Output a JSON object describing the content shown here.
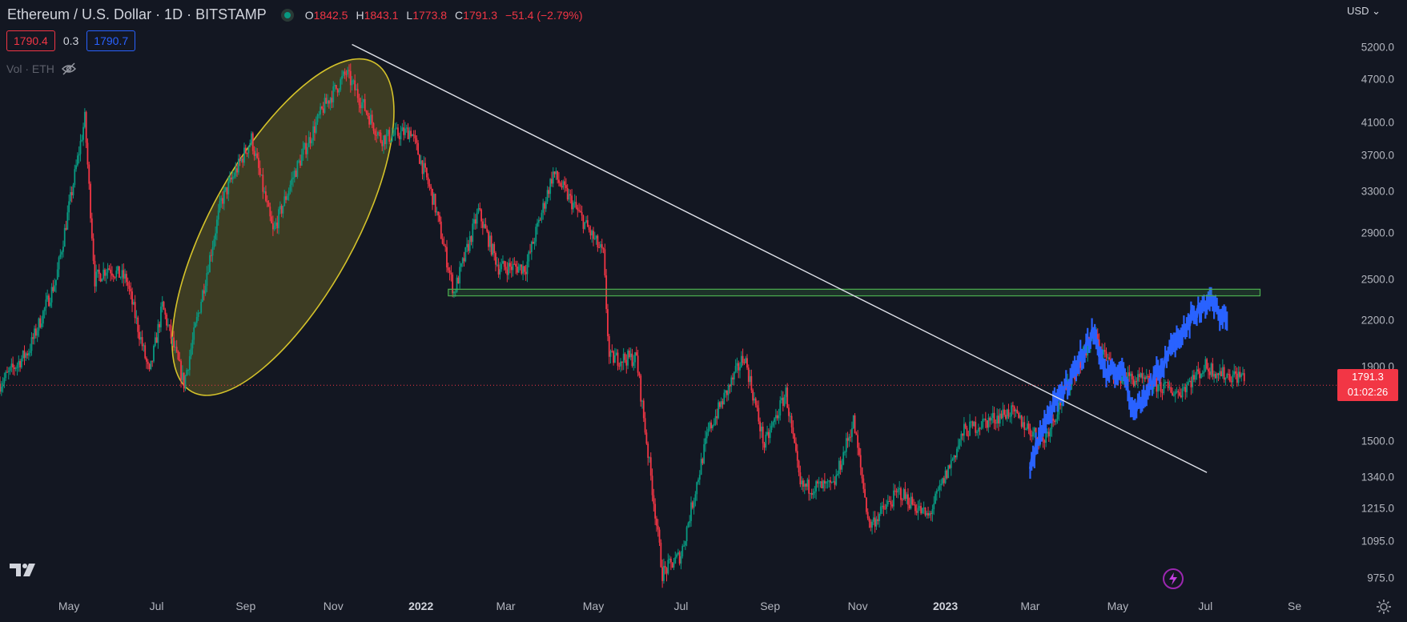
{
  "header": {
    "symbol_title": "Ethereum / U.S. Dollar · 1D · BITSTAMP",
    "ohlc": {
      "o_label": "O",
      "o": "1842.5",
      "h_label": "H",
      "h": "1843.1",
      "l_label": "L",
      "l": "1773.8",
      "c_label": "C",
      "c": "1791.3",
      "change": "−51.4 (−2.79%)"
    },
    "bid": "1790.4",
    "spread": "0.3",
    "ask": "1790.7",
    "volume_label": "Vol · ETH",
    "currency": "USD"
  },
  "colors": {
    "background": "#131722",
    "up": "#089981",
    "down": "#f23645",
    "projection": "#2962ff",
    "ellipse": "#d4c22a",
    "zone": "#4caf50"
  },
  "icons": [
    "tradingview-logo-icon",
    "eye-hidden-icon",
    "chevron-down-icon",
    "lightning-icon",
    "gear-icon"
  ],
  "chart_data": {
    "type": "candlestick",
    "title": "Ethereum / U.S. Dollar · 1D · BITSTAMP",
    "y_scale": "log",
    "ylim": [
      920,
      5600
    ],
    "y_ticks": [
      "5200.0",
      "4700.0",
      "4100.0",
      "3700.0",
      "3300.0",
      "2900.0",
      "2500.0",
      "2200.0",
      "1900.0",
      "1500.0",
      "1340.0",
      "1215.0",
      "1095.0",
      "975.0"
    ],
    "x_ticks": [
      "May",
      "Jul",
      "Sep",
      "Nov",
      "2022",
      "Mar",
      "May",
      "Jul",
      "Sep",
      "Nov",
      "2023",
      "Mar",
      "May",
      "Jul",
      "Se"
    ],
    "x_ticks_bold": [
      "2022",
      "2023"
    ],
    "xlim": [
      "2021-03-14",
      "2023-09-28"
    ],
    "series_points": [
      [
        "2021-03-14",
        1800
      ],
      [
        "2021-04-03",
        2000
      ],
      [
        "2021-04-22",
        2500
      ],
      [
        "2021-05-12",
        4150
      ],
      [
        "2021-05-19",
        2500
      ],
      [
        "2021-05-28",
        2600
      ],
      [
        "2021-06-10",
        2500
      ],
      [
        "2021-06-26",
        1850
      ],
      [
        "2021-07-05",
        2300
      ],
      [
        "2021-07-20",
        1800
      ],
      [
        "2021-08-15",
        3200
      ],
      [
        "2021-09-05",
        3900
      ],
      [
        "2021-09-20",
        2900
      ],
      [
        "2021-10-05",
        3500
      ],
      [
        "2021-10-25",
        4300
      ],
      [
        "2021-11-10",
        4800
      ],
      [
        "2021-12-04",
        3900
      ],
      [
        "2021-12-25",
        4000
      ],
      [
        "2022-01-10",
        3200
      ],
      [
        "2022-01-24",
        2400
      ],
      [
        "2022-02-10",
        3100
      ],
      [
        "2022-02-24",
        2600
      ],
      [
        "2022-03-15",
        2600
      ],
      [
        "2022-04-03",
        3500
      ],
      [
        "2022-04-20",
        3100
      ],
      [
        "2022-05-08",
        2700
      ],
      [
        "2022-05-12",
        1950
      ],
      [
        "2022-05-31",
        1950
      ],
      [
        "2022-06-13",
        1200
      ],
      [
        "2022-06-18",
        990
      ],
      [
        "2022-07-01",
        1050
      ],
      [
        "2022-07-20",
        1550
      ],
      [
        "2022-08-14",
        1970
      ],
      [
        "2022-08-28",
        1480
      ],
      [
        "2022-09-12",
        1750
      ],
      [
        "2022-09-22",
        1300
      ],
      [
        "2022-10-15",
        1300
      ],
      [
        "2022-10-29",
        1600
      ],
      [
        "2022-11-09",
        1150
      ],
      [
        "2022-11-30",
        1280
      ],
      [
        "2022-12-20",
        1180
      ],
      [
        "2023-01-14",
        1550
      ],
      [
        "2023-02-15",
        1650
      ],
      [
        "2023-03-10",
        1500
      ],
      [
        "2023-03-28",
        1800
      ],
      [
        "2023-04-14",
        2100
      ],
      [
        "2023-04-30",
        1850
      ],
      [
        "2023-05-25",
        1800
      ],
      [
        "2023-06-12",
        1750
      ],
      [
        "2023-07-01",
        1900
      ],
      [
        "2023-07-15",
        1850
      ],
      [
        "2023-07-28",
        1842.5
      ]
    ],
    "projection_points": [
      [
        "2023-03-01",
        1380
      ],
      [
        "2023-03-10",
        1580
      ],
      [
        "2023-03-28",
        1820
      ],
      [
        "2023-04-14",
        2120
      ],
      [
        "2023-04-23",
        1850
      ],
      [
        "2023-05-05",
        1880
      ],
      [
        "2023-05-12",
        1650
      ],
      [
        "2023-05-21",
        1750
      ],
      [
        "2023-06-05",
        1980
      ],
      [
        "2023-06-18",
        2180
      ],
      [
        "2023-07-03",
        2350
      ],
      [
        "2023-07-10",
        2260
      ],
      [
        "2023-07-16",
        2200
      ]
    ],
    "last_price": {
      "value": 1791.3,
      "label": "1791.3",
      "countdown": "01:02:26"
    },
    "annotations": {
      "trendline": {
        "from": [
          "2021-11-14",
          5250
        ],
        "to": [
          "2023-07-02",
          1360
        ]
      },
      "zone": {
        "x": [
          "2022-01-20",
          "2023-08-08"
        ],
        "y": [
          2375,
          2425
        ]
      },
      "ellipse": {
        "center": [
          "2021-09-27",
          2950
        ],
        "note": "highlighted rally Jul–Nov 2021"
      }
    }
  }
}
